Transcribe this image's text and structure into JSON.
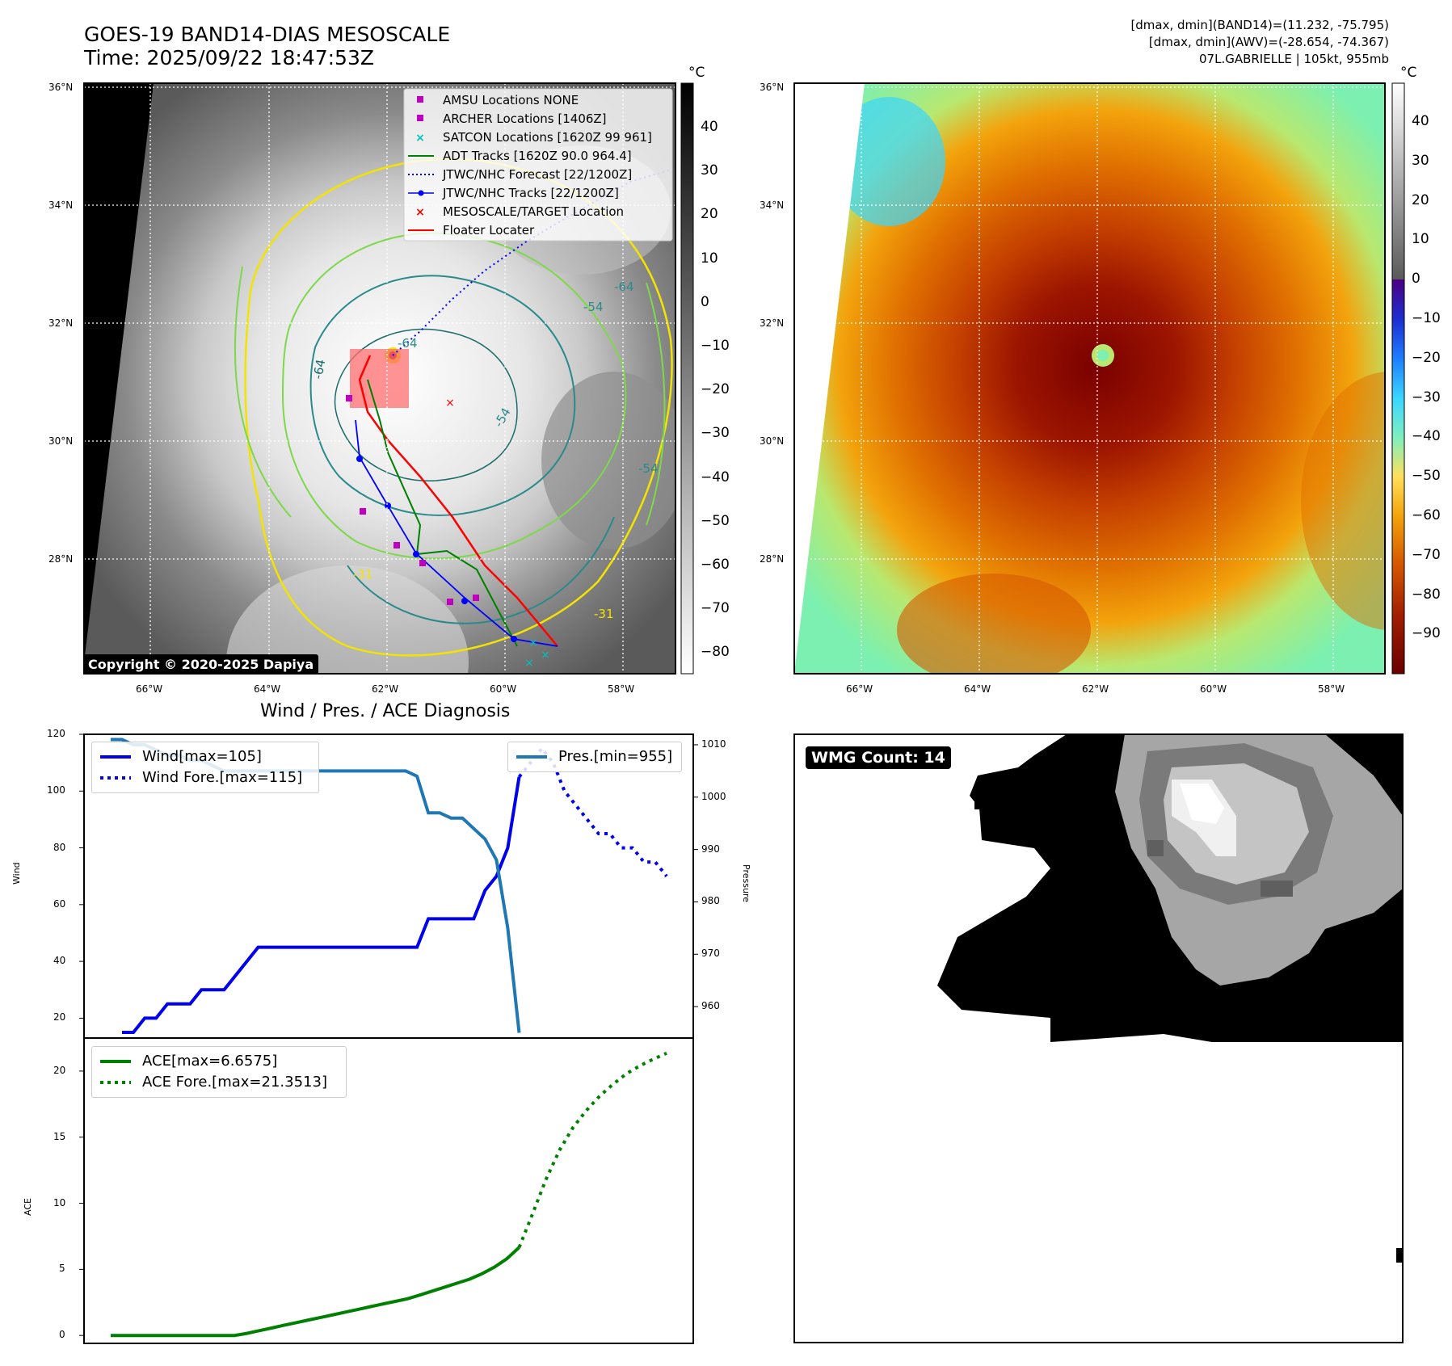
{
  "header": {
    "title_line1": "GOES-19 BAND14-DIAS MESOSCALE",
    "title_line2": "Time: 2025/09/22 18:47:53Z",
    "right_line1": "[dmax, dmin](BAND14)=(11.232, -75.795)",
    "right_line2": "[dmax, dmin](AWV)=(-28.654, -74.367)",
    "right_line3": "07L.GABRIELLE | 105kt, 955mb"
  },
  "map": {
    "lat_labels": [
      "36°N",
      "34°N",
      "32°N",
      "30°N",
      "28°N"
    ],
    "lon_labels": [
      "66°W",
      "64°W",
      "62°W",
      "60°W",
      "58°W"
    ],
    "contour_labels": [
      "-64",
      "-54",
      "-64",
      "-54",
      "-31",
      "-31",
      "-64",
      "-54"
    ],
    "copyright": "Copyright © 2020-2025 Dapiya",
    "legend": [
      {
        "label": "AMSU Locations NONE",
        "marker": "square",
        "color": "#c000c0"
      },
      {
        "label": "ARCHER Locations [1406Z]",
        "marker": "square",
        "color": "#c000c0"
      },
      {
        "label": "SATCON Locations [1620Z 99 961]",
        "marker": "x",
        "color": "#00c0c0"
      },
      {
        "label": "ADT Tracks [1620Z 90.0 964.4]",
        "marker": "line",
        "color": "#008000"
      },
      {
        "label": "JTWC/NHC Forecast [22/1200Z]",
        "marker": "dotted",
        "color": "#0000ff"
      },
      {
        "label": "JTWC/NHC Tracks [22/1200Z]",
        "marker": "line-dot",
        "color": "#0000ff"
      },
      {
        "label": "MESOSCALE/TARGET Location",
        "marker": "x",
        "color": "#ff0000"
      },
      {
        "label": "Floater Locater",
        "marker": "line",
        "color": "#ff0000"
      }
    ]
  },
  "colorbar_gray": {
    "unit": "°C",
    "ticks": [
      "40",
      "30",
      "20",
      "10",
      "0",
      "−10",
      "−20",
      "−30",
      "−40",
      "−50",
      "−60",
      "−70",
      "−80"
    ]
  },
  "colorbar_color": {
    "unit": "°C",
    "ticks": [
      "40",
      "30",
      "20",
      "10",
      "0",
      "−10",
      "−20",
      "−30",
      "−40",
      "−50",
      "−60",
      "−70",
      "−80",
      "−90"
    ]
  },
  "diagnosis": {
    "title": "Wind / Pres. / ACE Diagnosis",
    "wind_ylabel": "Wind",
    "pres_ylabel": "Pressure",
    "ace_ylabel": "ACE",
    "wind_ticks": [
      "120",
      "100",
      "80",
      "60",
      "40",
      "20"
    ],
    "pres_ticks": [
      "1010",
      "1000",
      "990",
      "980",
      "970",
      "960"
    ],
    "ace_ticks": [
      "20",
      "15",
      "10",
      "5",
      "0"
    ],
    "legend_wind": "Wind[max=105]",
    "legend_wind_fore": "Wind Fore.[max=115]",
    "legend_pres": "Pres.[min=955]",
    "legend_ace": "ACE[max=6.6575]",
    "legend_ace_fore": "ACE Fore.[max=21.3513]"
  },
  "wmg": {
    "label": "WMG Count: 14"
  },
  "chart_data": [
    {
      "type": "line",
      "title": "Wind / Pres. / ACE Diagnosis",
      "ylabel": "Wind",
      "ylim": [
        13,
        120
      ],
      "series": [
        {
          "name": "Wind[max=105]",
          "color": "#0000ee",
          "style": "solid",
          "values": [
            15,
            15,
            20,
            20,
            25,
            25,
            25,
            30,
            30,
            30,
            35,
            40,
            45,
            45,
            45,
            45,
            45,
            45,
            45,
            45,
            45,
            45,
            45,
            45,
            45,
            45,
            45,
            55,
            55,
            55,
            55,
            55,
            65,
            70,
            80,
            105
          ]
        },
        {
          "name": "Wind Fore.[max=115]",
          "color": "#0000ee",
          "style": "dotted",
          "values": [
            105,
            110,
            115,
            110,
            100,
            95,
            90,
            85,
            85,
            80,
            80,
            75,
            75,
            70
          ]
        }
      ]
    },
    {
      "type": "line",
      "ylabel": "Pressure",
      "ylim": [
        954,
        1012
      ],
      "series": [
        {
          "name": "Pres.[min=955]",
          "color": "#1f77b4",
          "style": "solid",
          "values": [
            1011,
            1011,
            1010,
            1010,
            1009,
            1008,
            1008,
            1007,
            1007,
            1006,
            1005,
            1005,
            1005,
            1005,
            1005,
            1005,
            1005,
            1005,
            1005,
            1005,
            1005,
            1005,
            1005,
            1005,
            1005,
            1005,
            1005,
            1004,
            997,
            997,
            996,
            996,
            994,
            992,
            988,
            975,
            955
          ]
        }
      ]
    },
    {
      "type": "line",
      "ylabel": "ACE",
      "ylim": [
        -0.6,
        22.5
      ],
      "series": [
        {
          "name": "ACE[max=6.6575]",
          "color": "#008000",
          "style": "solid",
          "values": [
            0,
            0,
            0,
            0,
            0,
            0,
            0,
            0,
            0,
            0,
            0,
            0.16,
            0.36,
            0.56,
            0.77,
            0.97,
            1.17,
            1.37,
            1.57,
            1.77,
            1.97,
            2.18,
            2.38,
            2.58,
            2.78,
            3.06,
            3.36,
            3.66,
            3.96,
            4.26,
            4.67,
            5.17,
            5.8,
            6.66
          ]
        },
        {
          "name": "ACE Fore.[max=21.3513]",
          "color": "#008000",
          "style": "dotted",
          "values": [
            6.66,
            9.2,
            11.8,
            14.0,
            15.7,
            17.0,
            18.1,
            19.0,
            19.8,
            20.4,
            20.9,
            21.35
          ]
        }
      ]
    }
  ]
}
